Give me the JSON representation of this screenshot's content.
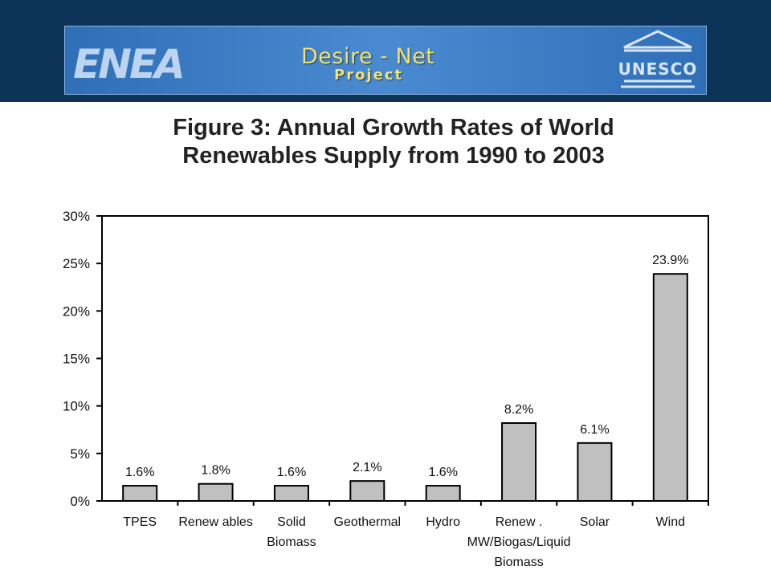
{
  "header": {
    "banner_title": "Desire - Net",
    "banner_subtitle": "Project",
    "logo_left": "ENEA",
    "logo_right": "UNESCO",
    "colors": {
      "header_bg": "#0e3358",
      "banner_bg": "#3a7cc4",
      "banner_text": "#f4e26a"
    }
  },
  "chart_data": {
    "type": "bar",
    "title_lines": [
      "Figure 3: Annual Growth Rates of World",
      "Renewables Supply from 1990 to 2003"
    ],
    "categories": [
      [
        "TPES"
      ],
      [
        "Renew ables"
      ],
      [
        "Solid",
        "Biomass"
      ],
      [
        "Geothermal"
      ],
      [
        "Hydro"
      ],
      [
        "Renew .",
        "MW/Biogas/Liquid",
        "Biomass"
      ],
      [
        "Solar"
      ],
      [
        "Wind"
      ]
    ],
    "values": [
      1.6,
      1.8,
      1.6,
      2.1,
      1.6,
      8.2,
      6.1,
      23.9
    ],
    "data_labels": [
      "1.6%",
      "1.8%",
      "1.6%",
      "2.1%",
      "1.6%",
      "8.2%",
      "6.1%",
      "23.9%"
    ],
    "ylim": [
      0,
      30
    ],
    "yticks": [
      0,
      5,
      10,
      15,
      20,
      25,
      30
    ],
    "ytick_labels": [
      "0%",
      "5%",
      "10%",
      "15%",
      "20%",
      "25%",
      "30%"
    ],
    "xlabel": "",
    "ylabel": "",
    "grid": false,
    "legend": "none",
    "bar_color": "#c0c0c0"
  }
}
